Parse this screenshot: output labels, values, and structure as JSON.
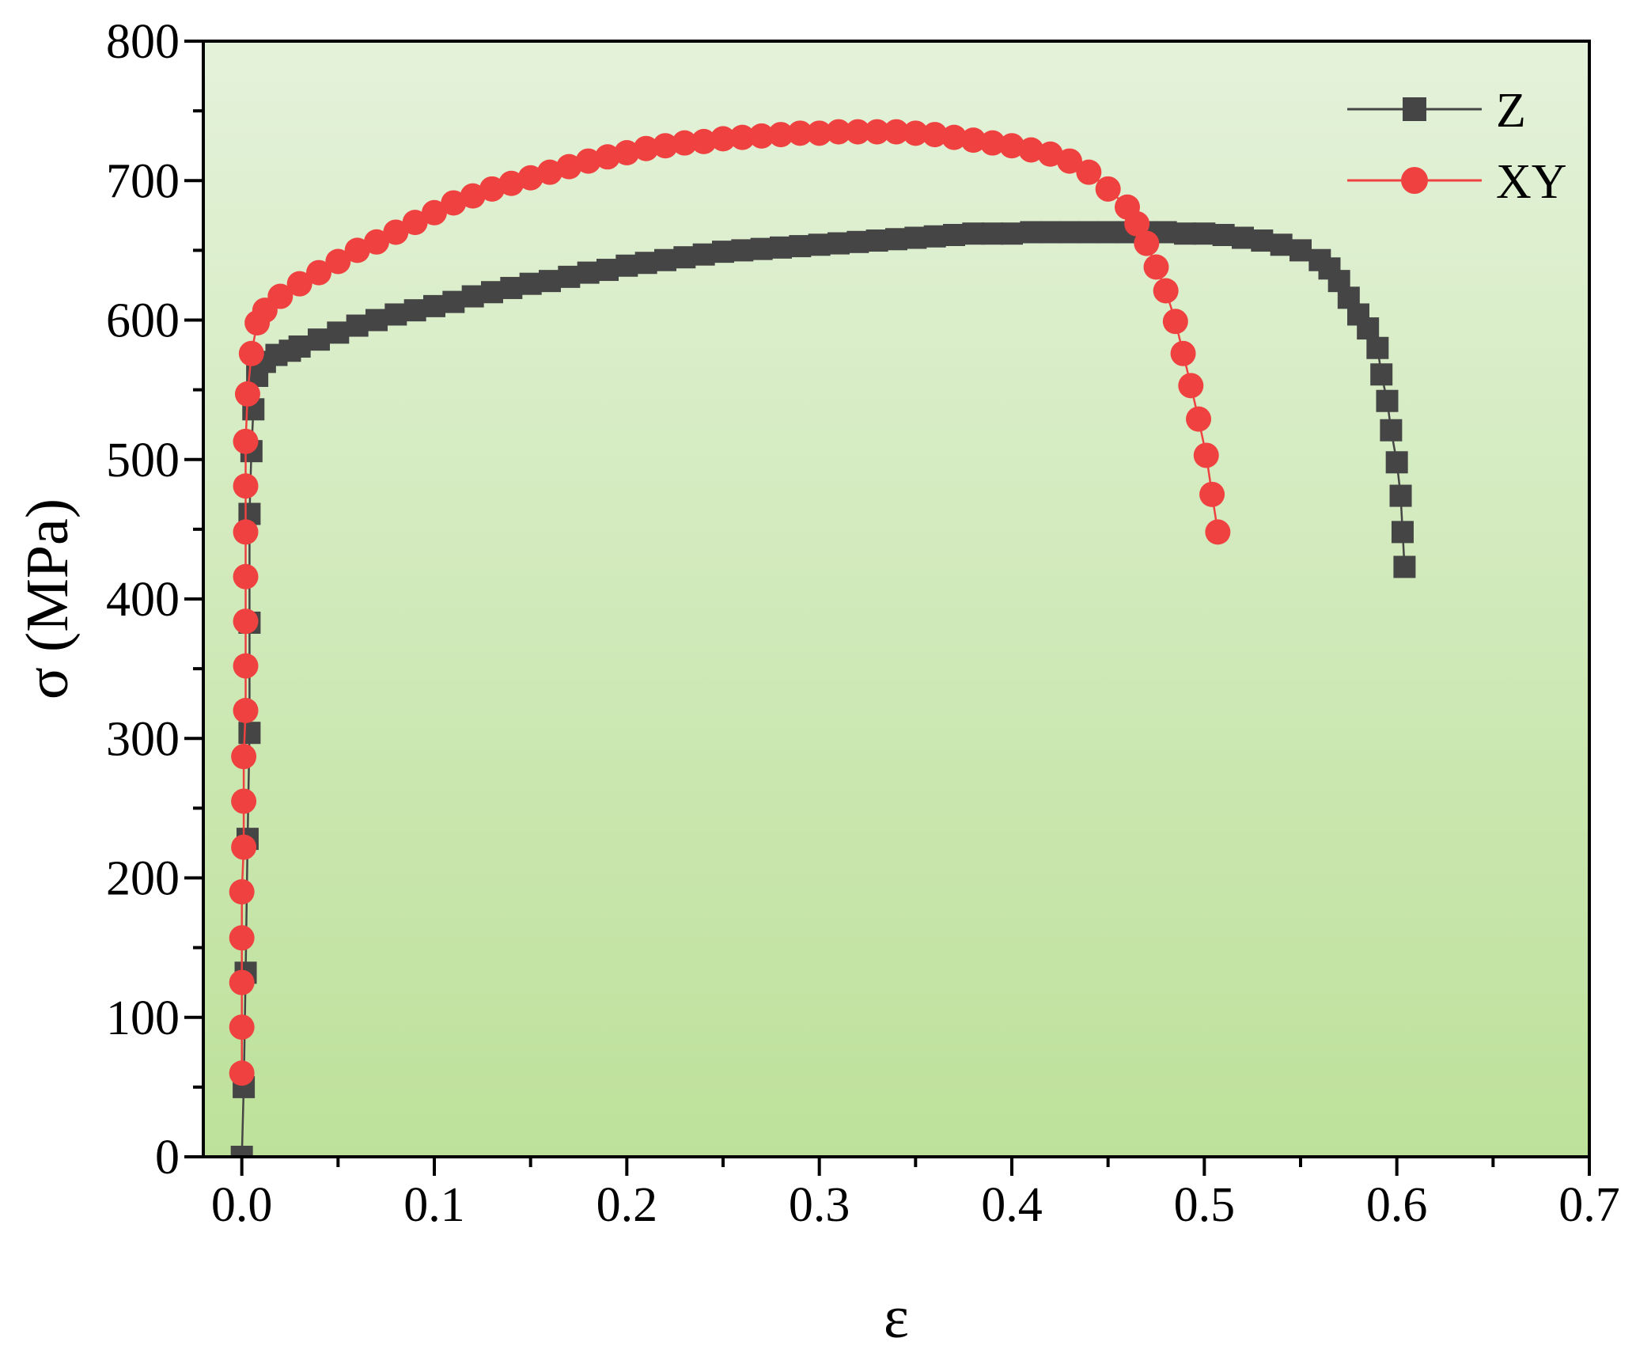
{
  "chart_data": {
    "type": "scatter",
    "title": "",
    "xlabel": "ε",
    "ylabel": "σ (MPa)",
    "xlim": [
      -0.02,
      0.7
    ],
    "ylim": [
      0,
      800
    ],
    "xticks": [
      0.0,
      0.1,
      0.2,
      0.3,
      0.4,
      0.5,
      0.6,
      0.7
    ],
    "xtick_labels": [
      "0.0",
      "0.1",
      "0.2",
      "0.3",
      "0.4",
      "0.5",
      "0.6",
      "0.7"
    ],
    "yticks": [
      0,
      100,
      200,
      300,
      400,
      500,
      600,
      700,
      800
    ],
    "ytick_labels": [
      "0",
      "100",
      "200",
      "300",
      "400",
      "500",
      "600",
      "700",
      "800"
    ],
    "grid": false,
    "legend_position": "top-right",
    "background": {
      "top": "#e4f2da",
      "bottom": "#bde19a"
    },
    "series": [
      {
        "name": "Z",
        "color": "#454545",
        "marker": "square",
        "points": [
          [
            0.0,
            0
          ],
          [
            0.001,
            50
          ],
          [
            0.002,
            132
          ],
          [
            0.003,
            228
          ],
          [
            0.004,
            304
          ],
          [
            0.004,
            383
          ],
          [
            0.004,
            461
          ],
          [
            0.005,
            506
          ],
          [
            0.006,
            536
          ],
          [
            0.008,
            560
          ],
          [
            0.012,
            570
          ],
          [
            0.018,
            575
          ],
          [
            0.025,
            578
          ],
          [
            0.03,
            581
          ],
          [
            0.04,
            586
          ],
          [
            0.05,
            591
          ],
          [
            0.06,
            596
          ],
          [
            0.07,
            600
          ],
          [
            0.08,
            604
          ],
          [
            0.09,
            607
          ],
          [
            0.1,
            610
          ],
          [
            0.11,
            613
          ],
          [
            0.12,
            617
          ],
          [
            0.13,
            620
          ],
          [
            0.14,
            623
          ],
          [
            0.15,
            626
          ],
          [
            0.16,
            628
          ],
          [
            0.17,
            631
          ],
          [
            0.18,
            634
          ],
          [
            0.19,
            636
          ],
          [
            0.2,
            639
          ],
          [
            0.21,
            641
          ],
          [
            0.22,
            643
          ],
          [
            0.23,
            645
          ],
          [
            0.24,
            647
          ],
          [
            0.25,
            649
          ],
          [
            0.26,
            650
          ],
          [
            0.27,
            651
          ],
          [
            0.28,
            652
          ],
          [
            0.29,
            653
          ],
          [
            0.3,
            654
          ],
          [
            0.31,
            655
          ],
          [
            0.32,
            656
          ],
          [
            0.33,
            657
          ],
          [
            0.34,
            658
          ],
          [
            0.35,
            659
          ],
          [
            0.36,
            660
          ],
          [
            0.37,
            661
          ],
          [
            0.38,
            662
          ],
          [
            0.39,
            662
          ],
          [
            0.4,
            662
          ],
          [
            0.41,
            663
          ],
          [
            0.42,
            663
          ],
          [
            0.43,
            663
          ],
          [
            0.44,
            663
          ],
          [
            0.45,
            663
          ],
          [
            0.46,
            663
          ],
          [
            0.47,
            663
          ],
          [
            0.48,
            663
          ],
          [
            0.49,
            662
          ],
          [
            0.5,
            662
          ],
          [
            0.51,
            661
          ],
          [
            0.52,
            659
          ],
          [
            0.53,
            657
          ],
          [
            0.54,
            654
          ],
          [
            0.55,
            650
          ],
          [
            0.56,
            643
          ],
          [
            0.565,
            637
          ],
          [
            0.57,
            628
          ],
          [
            0.575,
            616
          ],
          [
            0.58,
            604
          ],
          [
            0.585,
            594
          ],
          [
            0.59,
            580
          ],
          [
            0.592,
            561
          ],
          [
            0.595,
            542
          ],
          [
            0.597,
            521
          ],
          [
            0.6,
            498
          ],
          [
            0.602,
            474
          ],
          [
            0.603,
            448
          ],
          [
            0.604,
            423
          ]
        ]
      },
      {
        "name": "XY",
        "color": "#f04141",
        "marker": "circle",
        "points": [
          [
            0.0,
            60
          ],
          [
            0.0,
            93
          ],
          [
            0.0,
            125
          ],
          [
            0.0,
            157
          ],
          [
            0.0,
            190
          ],
          [
            0.001,
            222
          ],
          [
            0.001,
            255
          ],
          [
            0.001,
            287
          ],
          [
            0.002,
            320
          ],
          [
            0.002,
            352
          ],
          [
            0.002,
            384
          ],
          [
            0.002,
            416
          ],
          [
            0.002,
            448
          ],
          [
            0.002,
            481
          ],
          [
            0.002,
            513
          ],
          [
            0.003,
            547
          ],
          [
            0.005,
            576
          ],
          [
            0.008,
            598
          ],
          [
            0.012,
            607
          ],
          [
            0.02,
            617
          ],
          [
            0.03,
            626
          ],
          [
            0.04,
            634
          ],
          [
            0.05,
            642
          ],
          [
            0.06,
            650
          ],
          [
            0.07,
            656
          ],
          [
            0.08,
            663
          ],
          [
            0.09,
            670
          ],
          [
            0.1,
            677
          ],
          [
            0.11,
            684
          ],
          [
            0.12,
            689
          ],
          [
            0.13,
            694
          ],
          [
            0.14,
            698
          ],
          [
            0.15,
            702
          ],
          [
            0.16,
            706
          ],
          [
            0.17,
            710
          ],
          [
            0.18,
            714
          ],
          [
            0.19,
            717
          ],
          [
            0.2,
            720
          ],
          [
            0.21,
            723
          ],
          [
            0.22,
            725
          ],
          [
            0.23,
            727
          ],
          [
            0.24,
            728
          ],
          [
            0.25,
            730
          ],
          [
            0.26,
            731
          ],
          [
            0.27,
            732
          ],
          [
            0.28,
            733
          ],
          [
            0.29,
            734
          ],
          [
            0.3,
            734
          ],
          [
            0.31,
            735
          ],
          [
            0.32,
            735
          ],
          [
            0.33,
            735
          ],
          [
            0.34,
            735
          ],
          [
            0.35,
            734
          ],
          [
            0.36,
            733
          ],
          [
            0.37,
            731
          ],
          [
            0.38,
            729
          ],
          [
            0.39,
            727
          ],
          [
            0.4,
            725
          ],
          [
            0.41,
            722
          ],
          [
            0.42,
            719
          ],
          [
            0.43,
            714
          ],
          [
            0.44,
            706
          ],
          [
            0.45,
            694
          ],
          [
            0.46,
            681
          ],
          [
            0.465,
            669
          ],
          [
            0.47,
            655
          ],
          [
            0.475,
            638
          ],
          [
            0.48,
            621
          ],
          [
            0.485,
            599
          ],
          [
            0.489,
            576
          ],
          [
            0.493,
            553
          ],
          [
            0.497,
            529
          ],
          [
            0.501,
            503
          ],
          [
            0.504,
            475
          ],
          [
            0.507,
            448
          ]
        ]
      }
    ]
  }
}
